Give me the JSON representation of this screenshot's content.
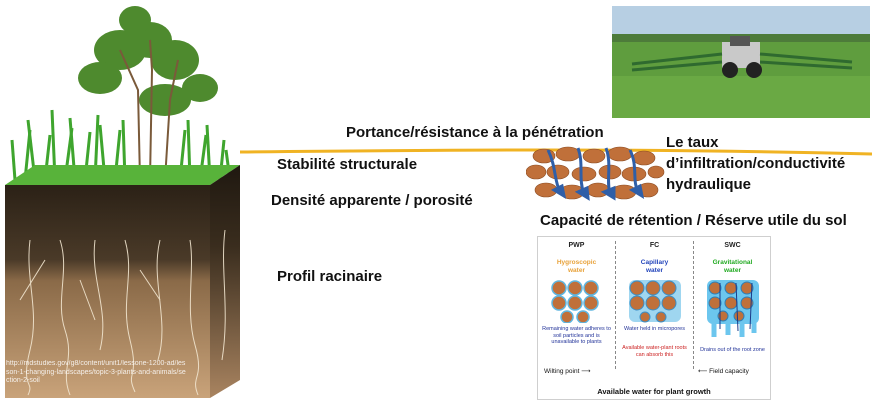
{
  "labels": {
    "portance": "Portance/résistance à la pénétration",
    "stabilite": "Stabilité structurale",
    "densite": "Densité apparente / porosité",
    "profil": "Profil racinaire",
    "taux_line1": "Le taux",
    "taux_line2": "d’infiltration/conductivité",
    "taux_line3": "hydraulique",
    "capacite": "Capacité de rétention / Réserve utile du sol"
  },
  "soil_caption": "http://mdstudies.gov/g8/content/unit1/lessone-1200-ad/lesson-1-changing-landscapes/topic-3-plants-and-animals/section-2-soil",
  "water_panel": {
    "columns": [
      {
        "header": "PWP",
        "type_line1": "Hygroscopic",
        "type_line2": "water",
        "type_color": "#e8a23a",
        "desc": "Remaining water adheres to soil particles and is unavailable to plants"
      },
      {
        "header": "FC",
        "type_line1": "Capillary",
        "type_line2": "water",
        "type_color": "#2244bb",
        "desc": "Water held in micropores",
        "note": "Available water-plant roots can absorb this"
      },
      {
        "header": "SWC",
        "type_line1": "Gravitational",
        "type_line2": "water",
        "type_color": "#22aa22",
        "desc": "Drains out of the root zone"
      }
    ],
    "wilting_point": "Wilting point",
    "field_capacity": "Field capacity",
    "footer": "Available water for plant growth"
  },
  "colors": {
    "accent_line": "#f0b323",
    "soil_dark": "#2f2418",
    "soil_light": "#b89068",
    "grass": "#3fa52e",
    "particle": "#c0703a",
    "arrow": "#2f5fa8"
  }
}
